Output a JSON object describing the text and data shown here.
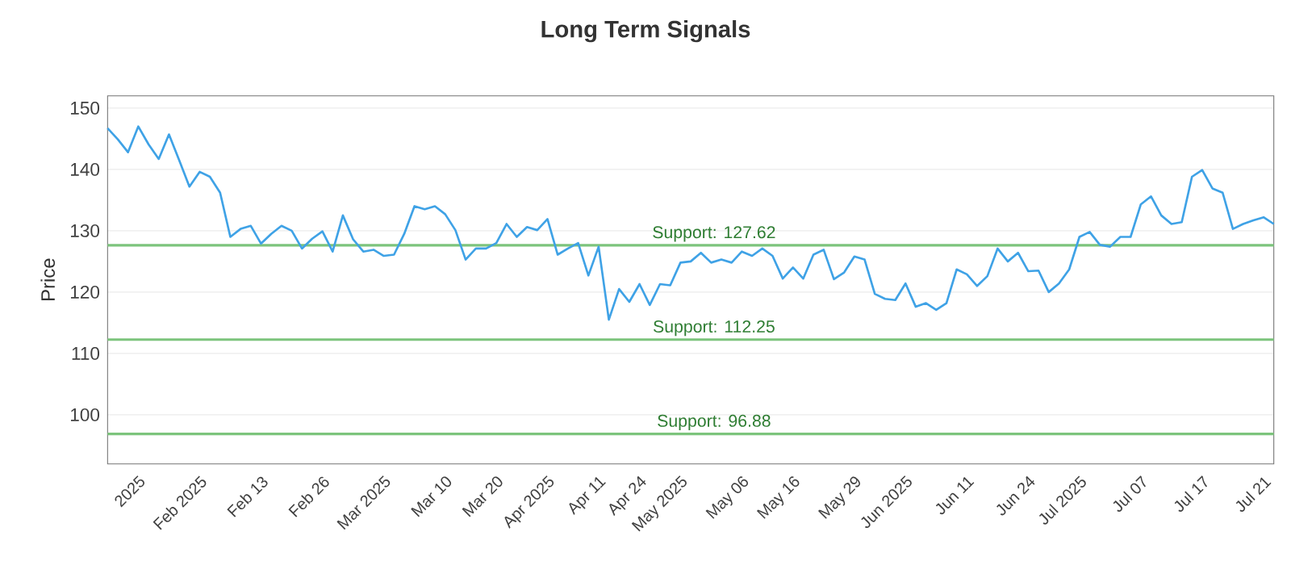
{
  "chart_data": {
    "type": "line",
    "title": "Long Term Signals",
    "ylabel": "Price",
    "categories": [
      null,
      null,
      null,
      "2025",
      null,
      null,
      null,
      null,
      null,
      "Feb 2025",
      null,
      null,
      null,
      null,
      null,
      "Feb 13",
      null,
      null,
      null,
      null,
      null,
      "Feb 26",
      null,
      null,
      null,
      null,
      null,
      "Mar 2025",
      null,
      null,
      null,
      null,
      null,
      "Mar 10",
      null,
      null,
      null,
      null,
      "Mar 20",
      null,
      null,
      null,
      null,
      "Apr 2025",
      null,
      null,
      null,
      null,
      "Apr 11",
      null,
      null,
      null,
      "Apr 24",
      null,
      null,
      null,
      "May 2025",
      null,
      null,
      null,
      null,
      null,
      "May 06",
      null,
      null,
      null,
      null,
      "May 16",
      null,
      null,
      null,
      null,
      null,
      "May 29",
      null,
      null,
      null,
      null,
      "Jun 2025",
      null,
      null,
      null,
      null,
      null,
      "Jun 11",
      null,
      null,
      null,
      null,
      null,
      "Jun 24",
      null,
      null,
      null,
      null,
      "Jul 2025",
      null,
      null,
      null,
      null,
      null,
      "Jul 07",
      null,
      null,
      null,
      null,
      null,
      "Jul 17",
      null,
      null,
      null,
      null,
      null,
      "Jul 21",
      null
    ],
    "series": [
      {
        "color": "#3fa2e6",
        "values": [
          146.7,
          144.9,
          142.8,
          147.0,
          144.1,
          141.7,
          145.7,
          141.5,
          137.2,
          139.6,
          138.8,
          136.2,
          129.0,
          130.3,
          130.8,
          127.9,
          129.5,
          130.8,
          130.0,
          127.1,
          128.7,
          129.9,
          126.6,
          132.5,
          128.6,
          126.6,
          126.9,
          125.9,
          126.1,
          129.5,
          134.0,
          133.5,
          134.0,
          132.7,
          130.1,
          125.3,
          127.1,
          127.1,
          128.0,
          131.1,
          129.0,
          130.6,
          130.1,
          131.9,
          126.1,
          127.1,
          128.0,
          122.7,
          127.4,
          115.5,
          120.5,
          118.4,
          121.3,
          117.9,
          121.3,
          121.1,
          124.8,
          125.0,
          126.4,
          124.8,
          125.3,
          124.8,
          126.6,
          125.9,
          127.1,
          125.9,
          122.2,
          124.0,
          122.2,
          126.1,
          126.9,
          122.1,
          123.2,
          125.8,
          125.3,
          119.7,
          118.9,
          118.7,
          121.4,
          117.6,
          118.2,
          117.1,
          118.2,
          123.7,
          122.9,
          121.0,
          122.6,
          127.1,
          125.0,
          126.4,
          123.4,
          123.5,
          120.0,
          121.4,
          123.7,
          129.0,
          129.8,
          127.7,
          127.4,
          129.0,
          129.0,
          134.3,
          135.6,
          132.5,
          131.1,
          131.4,
          138.8,
          139.9,
          136.9,
          136.2,
          130.3,
          131.1,
          131.7,
          132.2,
          131.1
        ]
      }
    ],
    "ylim": [
      92,
      152
    ],
    "yticks": [
      100,
      110,
      120,
      130,
      140,
      150
    ],
    "grid": "y",
    "marker": "none",
    "line_style": "solid",
    "ref_lines": [
      {
        "axis": "y",
        "value": 127.62,
        "label": "Support: 127.62",
        "color": "#7cc47c"
      },
      {
        "axis": "y",
        "value": 112.25,
        "label": "Support: 112.25",
        "color": "#7cc47c"
      },
      {
        "axis": "y",
        "value": 96.88,
        "label": "Support: 96.88",
        "color": "#7cc47c"
      }
    ]
  }
}
